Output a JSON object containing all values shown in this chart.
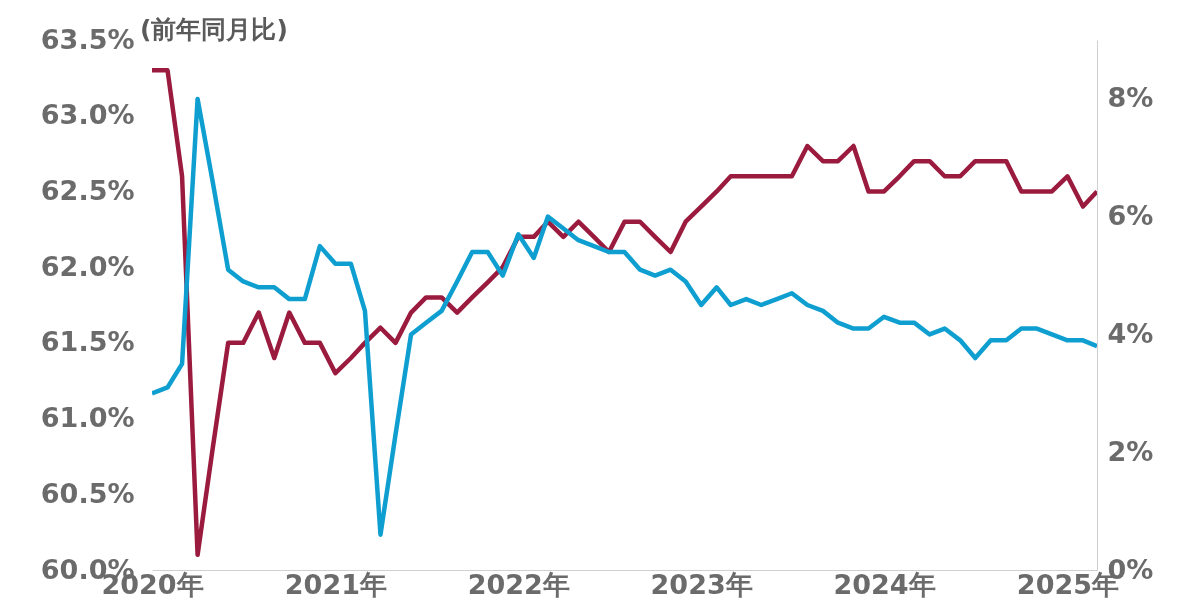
{
  "chart_data": {
    "type": "line",
    "annotations": [
      "(前年同月比)"
    ],
    "x": [
      "2020-01",
      "2020-02",
      "2020-03",
      "2020-04",
      "2020-05",
      "2020-06",
      "2020-07",
      "2020-08",
      "2020-09",
      "2020-10",
      "2020-11",
      "2020-12",
      "2021-01",
      "2021-02",
      "2021-03",
      "2021-04",
      "2021-05",
      "2021-06",
      "2021-07",
      "2021-08",
      "2021-09",
      "2021-10",
      "2021-11",
      "2021-12",
      "2022-01",
      "2022-02",
      "2022-03",
      "2022-04",
      "2022-05",
      "2022-06",
      "2022-07",
      "2022-08",
      "2022-09",
      "2022-10",
      "2022-11",
      "2022-12",
      "2023-01",
      "2023-02",
      "2023-03",
      "2023-04",
      "2023-05",
      "2023-06",
      "2023-07",
      "2023-08",
      "2023-09",
      "2023-10",
      "2023-11",
      "2023-12",
      "2024-01",
      "2024-02",
      "2024-03",
      "2024-04",
      "2024-05",
      "2024-06",
      "2024-07",
      "2024-08",
      "2024-09",
      "2024-10",
      "2024-11",
      "2024-12",
      "2025-01",
      "2025-02",
      "2025-03"
    ],
    "series": [
      {
        "color": "#9b1b3f",
        "values": [
          63.3,
          63.3,
          62.6,
          60.1,
          60.8,
          61.5,
          61.5,
          61.7,
          61.4,
          61.7,
          61.5,
          61.5,
          61.3,
          61.4,
          61.5,
          61.6,
          61.5,
          61.7,
          61.8,
          61.8,
          61.7,
          61.8,
          61.9,
          62.0,
          62.2,
          62.2,
          62.3,
          62.2,
          62.3,
          62.2,
          62.1,
          62.3,
          62.3,
          62.2,
          62.1,
          62.3,
          62.4,
          62.5,
          62.6,
          62.6,
          62.6,
          62.6,
          62.6,
          62.8,
          62.7,
          62.7,
          62.8,
          62.5,
          62.5,
          62.6,
          62.7,
          62.7,
          62.6,
          62.6,
          62.7,
          62.7,
          62.7,
          62.5,
          62.5,
          62.5,
          62.6,
          62.4,
          62.5
        ]
      },
      {
        "color": "#0e9fd0",
        "axis": "y2",
        "values": [
          3.0,
          3.1,
          3.5,
          8.0,
          6.6,
          5.1,
          4.9,
          4.8,
          4.8,
          4.6,
          4.6,
          5.5,
          5.2,
          5.2,
          4.4,
          0.6,
          2.3,
          4.0,
          4.2,
          4.4,
          4.9,
          5.4,
          5.4,
          5.0,
          5.7,
          5.3,
          6.0,
          5.8,
          5.6,
          5.5,
          5.4,
          5.4,
          5.1,
          5.0,
          5.1,
          4.9,
          4.5,
          4.8,
          4.5,
          4.6,
          4.5,
          4.6,
          4.7,
          4.5,
          4.4,
          4.2,
          4.1,
          4.1,
          4.3,
          4.2,
          4.2,
          4.0,
          4.1,
          3.9,
          3.6,
          3.9,
          3.9,
          4.1,
          4.1,
          4.0,
          3.9,
          3.9,
          3.8
        ]
      }
    ],
    "xlim": [
      "2020-01",
      "2025-03"
    ],
    "xticks": [
      {
        "value": "2020",
        "label": "2020年"
      },
      {
        "value": "2021",
        "label": "2021年"
      },
      {
        "value": "2022",
        "label": "2022年"
      },
      {
        "value": "2023",
        "label": "2023年"
      },
      {
        "value": "2024",
        "label": "2024年"
      },
      {
        "value": "2025",
        "label": "2025年"
      }
    ],
    "ylim": [
      60.0,
      63.5
    ],
    "yticks": [
      {
        "value": 60.0,
        "label": "60.0%"
      },
      {
        "value": 60.5,
        "label": "60.5%"
      },
      {
        "value": 61.0,
        "label": "61.0%"
      },
      {
        "value": 61.5,
        "label": "61.5%"
      },
      {
        "value": 62.0,
        "label": "62.0%"
      },
      {
        "value": 62.5,
        "label": "62.5%"
      },
      {
        "value": 63.0,
        "label": "63.0%"
      },
      {
        "value": 63.5,
        "label": "63.5%"
      }
    ],
    "y2lim": [
      0,
      9
    ],
    "y2ticks": [
      {
        "value": 0,
        "label": "0%"
      },
      {
        "value": 2,
        "label": "2%"
      },
      {
        "value": 4,
        "label": "4%"
      },
      {
        "value": 6,
        "label": "6%"
      },
      {
        "value": 8,
        "label": "8%"
      }
    ]
  }
}
